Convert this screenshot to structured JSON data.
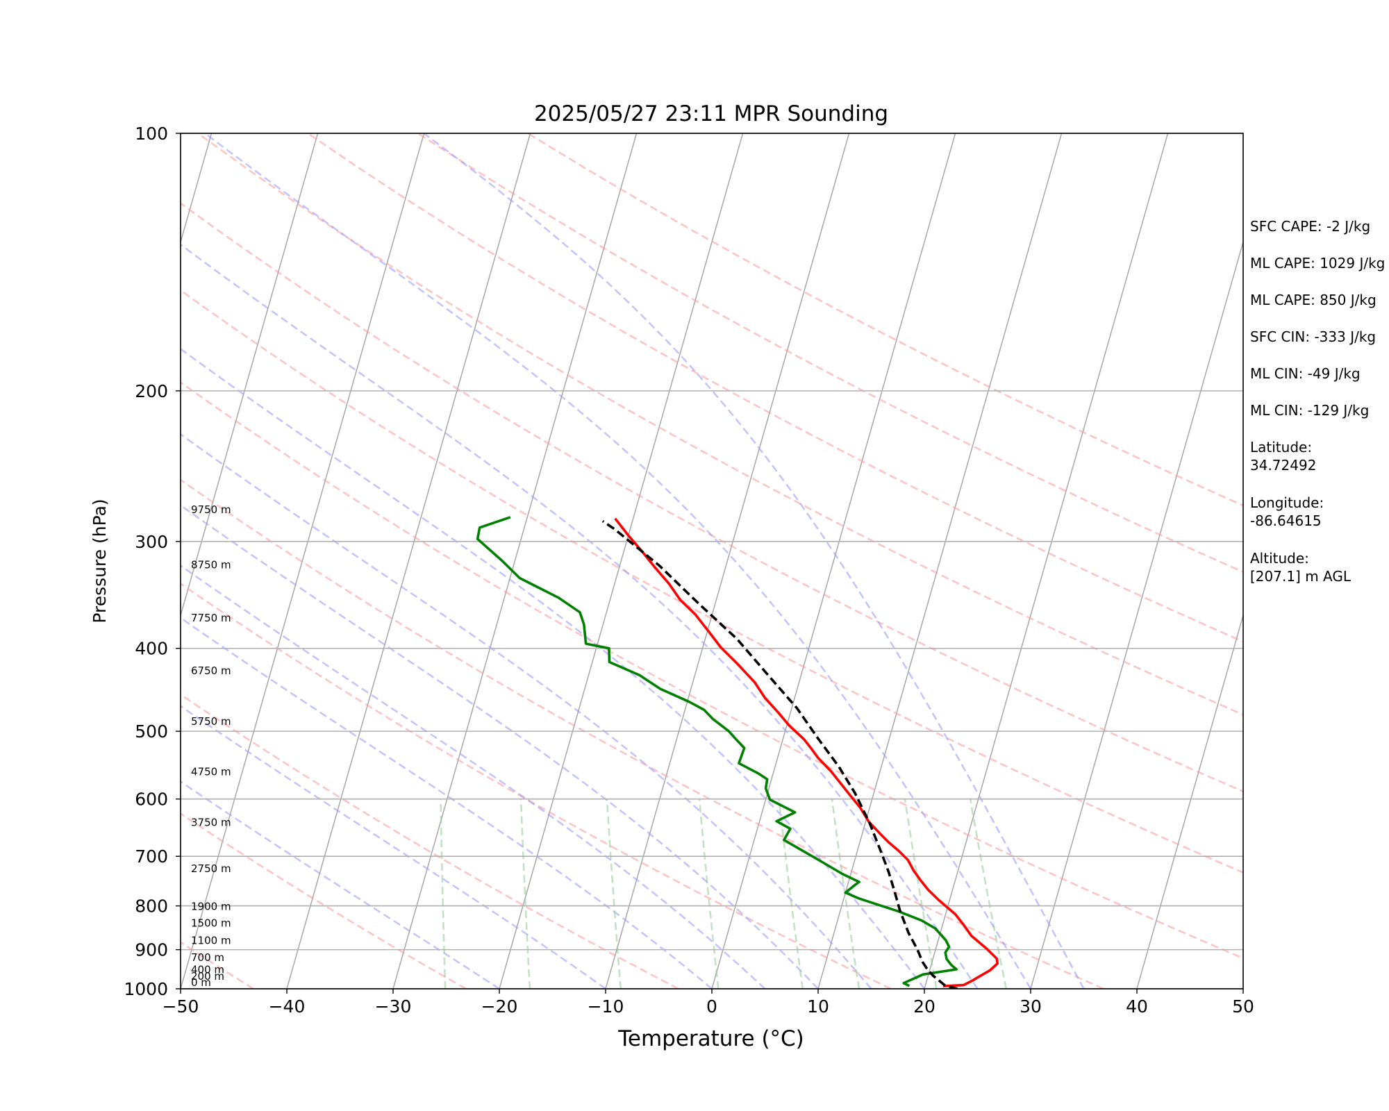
{
  "chart_data": {
    "type": "line",
    "title": "2025/05/27 23:11 MPR Sounding",
    "xlabel": "Temperature (°C)",
    "ylabel": "Pressure (hPa)",
    "xlim": [
      -50,
      50
    ],
    "ylim": [
      1000,
      100
    ],
    "y_scale": "log",
    "grid": true,
    "skew_t": true,
    "x_ticks": [
      "−50",
      "−40",
      "−30",
      "−20",
      "−10",
      "0",
      "10",
      "20",
      "30",
      "40",
      "50"
    ],
    "x_tick_values": [
      -50,
      -40,
      -30,
      -20,
      -10,
      0,
      10,
      20,
      30,
      40,
      50
    ],
    "y_ticks": [
      "1000",
      "900",
      "800",
      "700",
      "600",
      "500",
      "400",
      "300",
      "200",
      "100"
    ],
    "y_tick_values": [
      1000,
      900,
      800,
      700,
      600,
      500,
      400,
      300,
      200,
      100
    ],
    "height_labels": [
      {
        "text": "0 m",
        "p": 1000
      },
      {
        "text": "200 m",
        "p": 983
      },
      {
        "text": "400 m",
        "p": 966
      },
      {
        "text": "700 m",
        "p": 935
      },
      {
        "text": "1100 m",
        "p": 893
      },
      {
        "text": "1500 m",
        "p": 852
      },
      {
        "text": "1900 m",
        "p": 815
      },
      {
        "text": "2750 m",
        "p": 736
      },
      {
        "text": "3750 m",
        "p": 650
      },
      {
        "text": "4750 m",
        "p": 567
      },
      {
        "text": "5750 m",
        "p": 495
      },
      {
        "text": "6750 m",
        "p": 432
      },
      {
        "text": "7750 m",
        "p": 375
      },
      {
        "text": "8750 m",
        "p": 325
      },
      {
        "text": "9750 m",
        "p": 280
      }
    ],
    "series": [
      {
        "color": "#ff0000",
        "style": "solid",
        "points": [
          [
            21.7,
            993
          ],
          [
            23.6,
            990
          ],
          [
            24.3,
            978
          ],
          [
            25.7,
            951
          ],
          [
            26.2,
            934
          ],
          [
            26.0,
            922
          ],
          [
            24.8,
            898
          ],
          [
            23.0,
            867
          ],
          [
            21.9,
            840
          ],
          [
            20.9,
            818
          ],
          [
            19.0,
            788
          ],
          [
            17.7,
            766
          ],
          [
            16.7,
            746
          ],
          [
            15.8,
            727
          ],
          [
            15.0,
            707
          ],
          [
            13.9,
            690
          ],
          [
            12.7,
            674
          ],
          [
            11.7,
            659
          ],
          [
            10.3,
            638
          ],
          [
            9.1,
            614
          ],
          [
            7.7,
            592
          ],
          [
            5.4,
            557
          ],
          [
            3.8,
            537
          ],
          [
            3.0,
            525
          ],
          [
            2.0,
            511
          ],
          [
            0.2,
            492
          ],
          [
            -1.1,
            476
          ],
          [
            -2.8,
            457
          ],
          [
            -4.2,
            438
          ],
          [
            -6.3,
            417
          ],
          [
            -8.3,
            399
          ],
          [
            -9.7,
            384
          ],
          [
            -11.6,
            365
          ],
          [
            -13.4,
            351
          ],
          [
            -14.9,
            336
          ],
          [
            -16.6,
            322
          ],
          [
            -18.3,
            308
          ],
          [
            -19.9,
            296
          ],
          [
            -21.7,
            282
          ]
        ]
      },
      {
        "color": "#008000",
        "style": "solid",
        "points": [
          [
            18.5,
            992
          ],
          [
            17.9,
            985
          ],
          [
            18.3,
            979
          ],
          [
            19.5,
            962
          ],
          [
            22.5,
            949
          ],
          [
            21.9,
            938
          ],
          [
            21.3,
            923
          ],
          [
            21.0,
            907
          ],
          [
            21.2,
            893
          ],
          [
            20.7,
            877
          ],
          [
            19.4,
            850
          ],
          [
            17.9,
            832
          ],
          [
            15.5,
            812
          ],
          [
            11.4,
            784
          ],
          [
            10.0,
            772
          ],
          [
            10.7,
            756
          ],
          [
            11.0,
            750
          ],
          [
            9.2,
            734
          ],
          [
            6.6,
            707
          ],
          [
            2.8,
            670
          ],
          [
            3.1,
            650
          ],
          [
            1.6,
            637
          ],
          [
            3.1,
            622
          ],
          [
            0.4,
            601
          ],
          [
            -0.3,
            583
          ],
          [
            -0.4,
            569
          ],
          [
            -1.4,
            560
          ],
          [
            -3.5,
            545
          ],
          [
            -3.4,
            523
          ],
          [
            -4.4,
            511
          ],
          [
            -5.3,
            500
          ],
          [
            -7.1,
            484
          ],
          [
            -8.2,
            472
          ],
          [
            -9.8,
            462
          ],
          [
            -12.9,
            446
          ],
          [
            -15.2,
            430
          ],
          [
            -18.4,
            415
          ],
          [
            -18.8,
            400
          ],
          [
            -21.1,
            395
          ],
          [
            -21.8,
            375
          ],
          [
            -22.5,
            363
          ],
          [
            -24.9,
            349
          ],
          [
            -29.1,
            331
          ],
          [
            -31.2,
            316
          ],
          [
            -34.1,
            298
          ],
          [
            -34.2,
            289
          ],
          [
            -31.6,
            281
          ]
        ]
      },
      {
        "color": "#000000",
        "style": "dashed",
        "points": [
          [
            23.1,
            1000
          ],
          [
            21.9,
            992
          ],
          [
            21.0,
            975
          ],
          [
            20.5,
            966
          ],
          [
            19.8,
            950
          ],
          [
            19.1,
            930
          ],
          [
            18.3,
            900
          ],
          [
            17.0,
            860
          ],
          [
            15.6,
            810
          ],
          [
            14.6,
            770
          ],
          [
            13.5,
            730
          ],
          [
            12.2,
            690
          ],
          [
            10.4,
            640
          ],
          [
            8.2,
            590
          ],
          [
            6.0,
            550
          ],
          [
            3.3,
            510
          ],
          [
            0.5,
            470
          ],
          [
            -3.1,
            430
          ],
          [
            -7.0,
            390
          ],
          [
            -11.5,
            355
          ],
          [
            -16.3,
            320
          ],
          [
            -21.5,
            290
          ],
          [
            -22.8,
            284
          ]
        ]
      }
    ],
    "dry_adiabat_thetas": [
      230,
      250,
      270,
      290,
      310,
      330,
      350,
      370,
      390,
      410,
      430,
      450
    ],
    "moist_adiabat_starts": [
      -20,
      -10,
      0,
      5,
      10,
      15,
      20,
      25,
      30,
      35
    ],
    "mixing_ratio_lines": [
      0.5,
      1,
      2,
      4,
      7,
      10,
      16,
      24
    ],
    "colors": {
      "temperature": "#ff0000",
      "dewpoint": "#008000",
      "parcel": "#000000",
      "dry_adiabat": "#ff9999",
      "moist_adiabat": "#9999ff",
      "mixing_ratio": "#99cc99",
      "isotherm": "#a6a6a6"
    }
  },
  "stats": [
    "SFC CAPE: -2 J/kg",
    "ML CAPE: 1029 J/kg",
    "ML CAPE: 850 J/kg",
    "SFC CIN: -333 J/kg",
    "ML CIN: -49 J/kg",
    "ML CIN: -129 J/kg"
  ],
  "location": {
    "lat_label": "Latitude:",
    "lat_value": "34.72492",
    "lon_label": "Longitude:",
    "lon_value": "-86.64615",
    "alt_label": "Altitude:",
    "alt_value": "[207.1] m AGL"
  }
}
